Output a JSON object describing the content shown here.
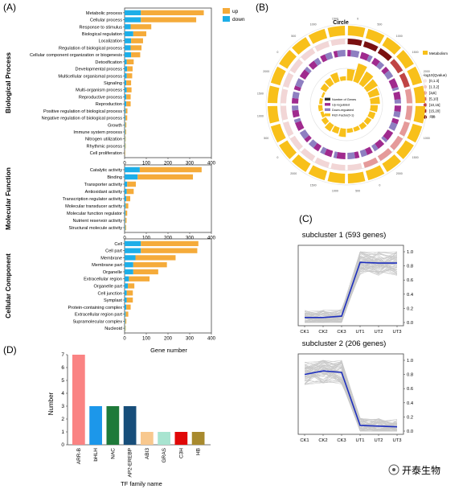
{
  "colors": {
    "up": "#F5AB3A",
    "down": "#1DAEE8",
    "ring_yellow": "#F8C01A",
    "ring_purple": "#A02A8E",
    "ring_lavender": "#8E7FC1",
    "trend_line": "#1E2FBE",
    "trend_lines_gray": "#C8C8C8",
    "watermark": "#222222"
  },
  "watermark": "开泰生物",
  "chart_data": [
    {
      "panel": "(A)",
      "type": "bar",
      "orientation": "horizontal",
      "stacked": true,
      "legend": {
        "position": "top-right",
        "items": [
          "up",
          "down"
        ]
      },
      "xlabel": "Gene number",
      "xlim": [
        0,
        400
      ],
      "xticks": [
        0,
        100,
        200,
        300,
        400
      ],
      "groups": [
        {
          "name": "Biological Process",
          "categories": [
            "Metabolic process",
            "Cellular process",
            "Response to stimulus",
            "Biological regulation",
            "Localization",
            "Regulation of biological process",
            "Cellular component organization or biogenesis",
            "Detoxification",
            "Developmental process",
            "Multicellular organismal process",
            "Signaling",
            "Multi-organism process",
            "Reproductive process",
            "Reproduction",
            "Positive regulation of biological process",
            "Negative regulation of biological process",
            "Growth",
            "Immune system process",
            "Nitrogen utilization",
            "Rhythmic process",
            "Cell proliferation"
          ],
          "series": [
            {
              "name": "down",
              "values": [
                75,
                75,
                28,
                40,
                30,
                28,
                30,
                10,
                12,
                10,
                8,
                10,
                8,
                8,
                5,
                4,
                3,
                3,
                2,
                2,
                1
              ]
            },
            {
              "name": "up",
              "values": [
                290,
                255,
                95,
                60,
                55,
                50,
                42,
                32,
                25,
                25,
                22,
                22,
                20,
                20,
                8,
                8,
                5,
                4,
                3,
                3,
                2
              ]
            }
          ]
        },
        {
          "name": "Molecular Function",
          "categories": [
            "Catalytic activity",
            "Binding",
            "Transporter activity",
            "Antioxidant activity",
            "Transcription regulator activity",
            "Molecular transducer activity",
            "Molecular function regulator",
            "Nutrient reservoir activity",
            "Structural molecule activity"
          ],
          "series": [
            {
              "name": "down",
              "values": [
                70,
                60,
                12,
                10,
                8,
                5,
                4,
                3,
                3
              ]
            },
            {
              "name": "up",
              "values": [
                285,
                255,
                40,
                32,
                18,
                12,
                8,
                6,
                4
              ]
            }
          ]
        },
        {
          "name": "Cellular Component",
          "categories": [
            "Cell",
            "Cell part",
            "Membrane",
            "Membrane part",
            "Organelle",
            "Extracellular region",
            "Organelle part",
            "Cell junction",
            "Symplast",
            "Protein-containing complex",
            "Extracellular region part",
            "Supramolecular complex",
            "Nucleoid"
          ],
          "series": [
            {
              "name": "down",
              "values": [
                75,
                75,
                50,
                40,
                40,
                20,
                15,
                10,
                10,
                8,
                5,
                3,
                2
              ]
            },
            {
              "name": "up",
              "values": [
                265,
                260,
                185,
                155,
                115,
                95,
                30,
                28,
                28,
                20,
                12,
                5,
                3
              ]
            }
          ]
        }
      ]
    },
    {
      "panel": "(B)",
      "type": "circos",
      "title": "Circle",
      "legend": {
        "category": "Metabolism",
        "color_title": "-log10(Qvalue)",
        "color_bins": [
          "[0,1.3]",
          "[1.3,2]",
          "[2,5]",
          "[5,10]",
          "[10,15]",
          "[15,20]",
          ">20"
        ],
        "color_bin_colors": [
          "#F7E4E4",
          "#F0C4C4",
          "#E59A9A",
          "#D46868",
          "#C04444",
          "#A52828",
          "#7A1010"
        ],
        "inner": [
          "Number of Genes",
          "Up-regulated",
          "Down-regulated",
          "Rich Factor(0-1)"
        ],
        "inner_colors": [
          "#333333",
          "#A02A8E",
          "#8E7FC1",
          "#F8C01A"
        ]
      },
      "segments": 24,
      "axis_tick_labels": [
        "0",
        "500",
        "1000",
        "1500",
        "2000"
      ],
      "term_counts": [
        58,
        42,
        31,
        25,
        20,
        18,
        15,
        12,
        10,
        9,
        8,
        7,
        6,
        5,
        5,
        4,
        4,
        3,
        3,
        3,
        2,
        2,
        2,
        1
      ],
      "rich_factor": [
        0.55,
        0.9,
        0.7,
        0.6,
        0.5,
        0.45,
        0.35,
        0.3,
        0.25,
        0.25,
        0.2,
        0.2,
        0.4,
        0.3,
        0.35,
        0.25,
        0.15,
        0.2,
        0.15,
        0.1,
        0.3,
        0.35,
        0.45,
        0.2
      ]
    },
    {
      "panel": "(C)",
      "type": "line",
      "title": "subcluster 1 (593 genes)",
      "categories": [
        "CK1",
        "CK2",
        "CK3",
        "UT1",
        "UT2",
        "UT3"
      ],
      "ylim": [
        0,
        1.0
      ],
      "yticks": [
        "0.0",
        "0.2",
        "0.4",
        "0.6",
        "0.8",
        "1.0"
      ],
      "series": [
        {
          "values": [
            0.07,
            0.07,
            0.09,
            0.85,
            0.84,
            0.84
          ]
        }
      ]
    },
    {
      "panel": "(C)",
      "type": "line",
      "title": "subcluster 2 (206 genes)",
      "categories": [
        "CK1",
        "CK2",
        "CK3",
        "UT1",
        "UT2",
        "UT3"
      ],
      "ylim": [
        0,
        1.0
      ],
      "yticks": [
        "0.0",
        "0.2",
        "0.4",
        "0.6",
        "0.8",
        "1.0"
      ],
      "series": [
        {
          "values": [
            0.8,
            0.85,
            0.83,
            0.08,
            0.07,
            0.06
          ]
        }
      ]
    },
    {
      "panel": "(D)",
      "type": "bar",
      "xlabel": "TF family name",
      "ylabel": "Number",
      "ylim": [
        0,
        7
      ],
      "yticks": [
        0,
        1,
        2,
        3,
        4,
        5,
        6,
        7
      ],
      "categories": [
        "ARR-B",
        "bHLH",
        "NAC",
        "AP2-EREBP",
        "ABI3",
        "GRAS",
        "C3H",
        "HB"
      ],
      "values": [
        7,
        3,
        3,
        3,
        1,
        1,
        1,
        1
      ],
      "bar_colors": [
        "#FA8383",
        "#1C97EA",
        "#1E7A3A",
        "#174E7A",
        "#F8C88E",
        "#A8E4D0",
        "#E00808",
        "#A88A2E"
      ]
    }
  ]
}
